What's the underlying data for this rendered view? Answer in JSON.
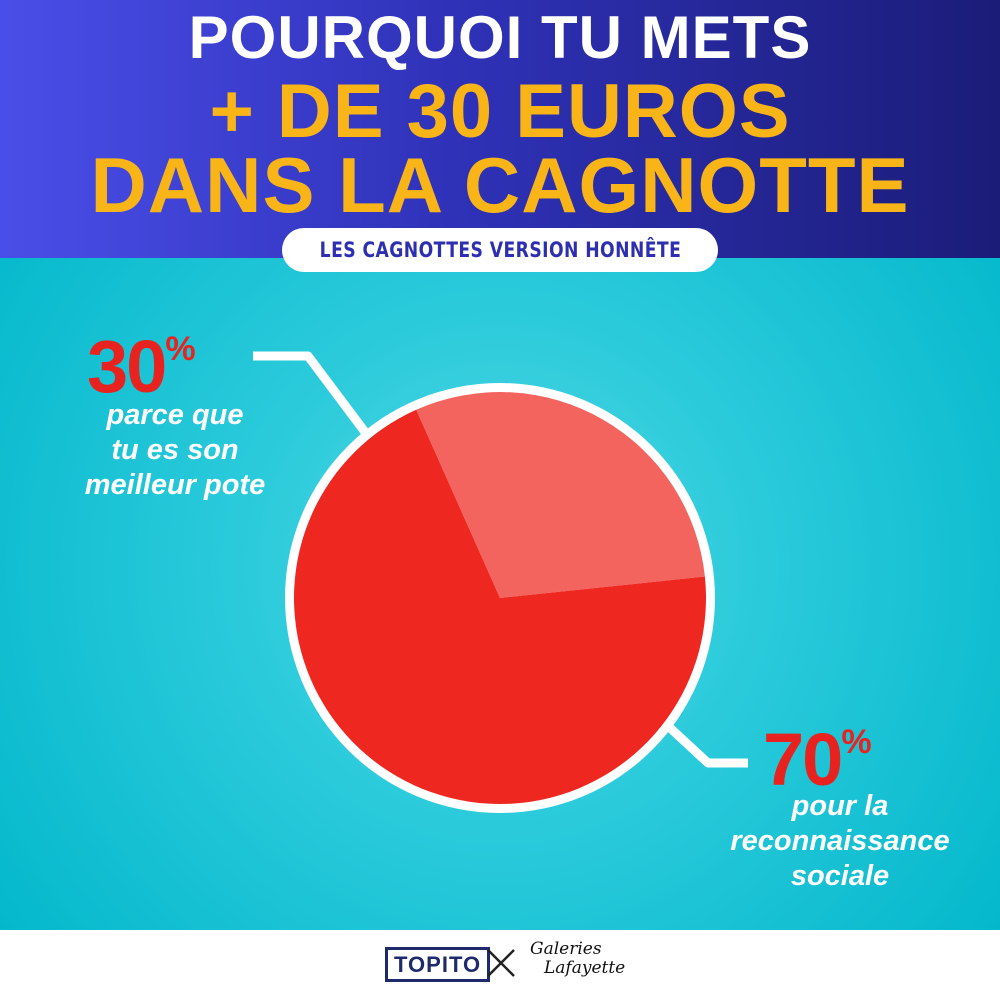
{
  "header": {
    "line1": "POURQUOI TU METS",
    "line2": "+ DE 30 EUROS",
    "line3": "DANS LA CAGNOTTE",
    "subtitle": "LES CAGNOTTES VERSION HONNÊTE"
  },
  "chart_data": {
    "type": "pie",
    "title": "POURQUOI TU METS + DE 30 EUROS DANS LA CAGNOTTE",
    "subtitle": "LES CAGNOTTES VERSION HONNÊTE",
    "slices": [
      {
        "label": "parce que tu es son meilleur pote",
        "value": 30,
        "percent_label": "30",
        "percent_sign": "%",
        "lines": [
          "parce que",
          "tu es son",
          "meilleur pote"
        ],
        "color": "#f4645f"
      },
      {
        "label": "pour la reconnaissance sociale",
        "value": 70,
        "percent_label": "70",
        "percent_sign": "%",
        "lines": [
          "pour la",
          "reconnaissance",
          "sociale"
        ],
        "color": "#ee2720"
      }
    ]
  },
  "colors": {
    "header_gradient_start": "#4a4ee8",
    "header_gradient_end": "#1b1c78",
    "title_white": "#ffffff",
    "title_yellow": "#f9b517",
    "background_teal": "#0fc0d0",
    "percent_red": "#e8231f"
  },
  "footer": {
    "brand1": "TOPITO",
    "separator_icon": "cross-icon",
    "brand2_line1": "Galeries",
    "brand2_line2": "Lafayette"
  }
}
